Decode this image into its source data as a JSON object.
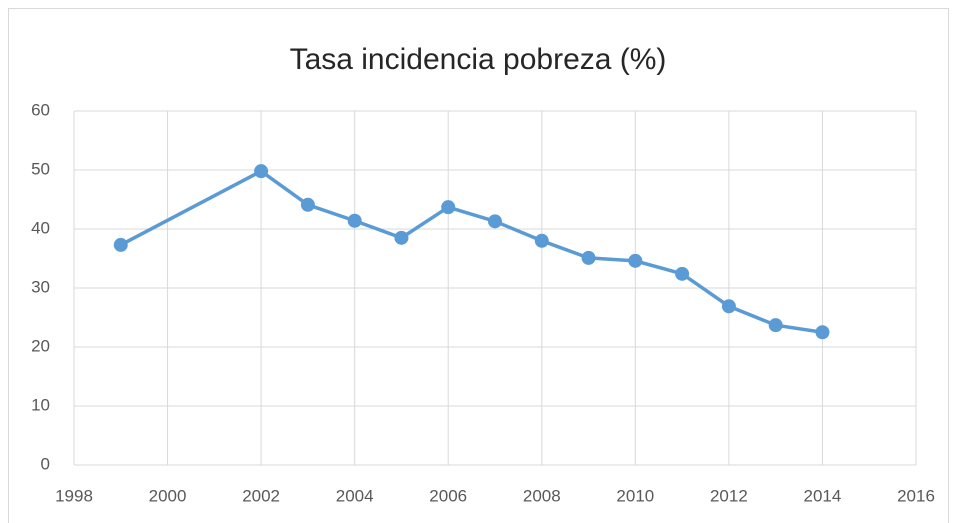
{
  "chart_data": {
    "type": "line",
    "title": "Tasa incidencia pobreza (%)",
    "x": [
      1999,
      2002,
      2003,
      2004,
      2005,
      2006,
      2007,
      2008,
      2009,
      2010,
      2011,
      2012,
      2013,
      2014
    ],
    "series": [
      {
        "name": "Tasa incidencia pobreza (%)",
        "color": "#5b9bd5",
        "values": [
          37.3,
          49.8,
          44.1,
          41.4,
          38.5,
          43.7,
          41.3,
          38.0,
          35.1,
          34.6,
          32.4,
          26.9,
          23.7,
          22.5
        ]
      }
    ],
    "xlim": [
      1998,
      2016
    ],
    "xticks": [
      1998,
      2000,
      2002,
      2004,
      2006,
      2008,
      2010,
      2012,
      2014,
      2016
    ],
    "ylim": [
      0,
      60
    ],
    "yticks": [
      0,
      10,
      20,
      30,
      40,
      50,
      60
    ],
    "grid": true
  }
}
